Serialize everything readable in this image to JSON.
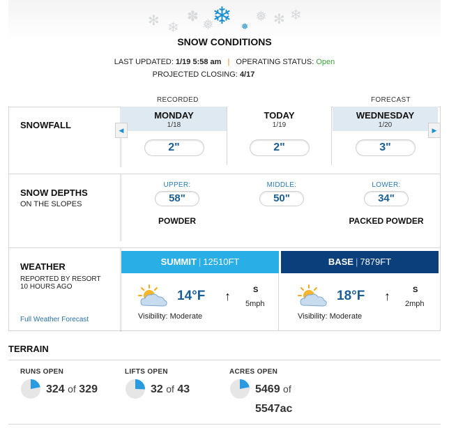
{
  "header": {
    "title": "SNOW CONDITIONS",
    "last_updated_label": "LAST UPDATED:",
    "last_updated_value": "1/19 5:58 am",
    "separator": "|",
    "status_label": "OPERATING STATUS:",
    "status_value": "Open",
    "closing_label": "PROJECTED CLOSING:",
    "closing_value": "4/17",
    "recorded_label": "RECORDED",
    "forecast_label": "FORECAST"
  },
  "snowfall": {
    "label": "SNOWFALL",
    "prev_icon": "chevron-left-icon",
    "next_icon": "chevron-right-icon",
    "days": [
      {
        "name": "MONDAY",
        "date": "1/18",
        "amount": "2\""
      },
      {
        "name": "TODAY",
        "date": "1/19",
        "amount": "2\""
      },
      {
        "name": "WEDNESDAY",
        "date": "1/20",
        "amount": "3\""
      }
    ]
  },
  "depths": {
    "label": "SNOW DEPTHS",
    "sub": "ON THE SLOPES",
    "upper": {
      "label": "UPPER:",
      "value": "58\"",
      "condition": "POWDER"
    },
    "middle": {
      "label": "MIDDLE:",
      "value": "50\""
    },
    "lower": {
      "label": "LOWER:",
      "value": "34\"",
      "condition": "PACKED POWDER"
    }
  },
  "weather": {
    "label": "WEATHER",
    "sub1": "REPORTED BY RESORT",
    "sub2": "10 HOURS AGO",
    "link": "Full Weather Forecast",
    "summit": {
      "name": "SUMMIT",
      "elevation": "12510FT",
      "temp": "14°F",
      "wind_dir": "S",
      "wind_speed": "5mph",
      "visibility": "Visibility: Moderate",
      "icon": "partly-cloudy-icon"
    },
    "base": {
      "name": "BASE",
      "elevation": "7879FT",
      "temp": "18°F",
      "wind_dir": "S",
      "wind_speed": "2mph",
      "visibility": "Visibility: Moderate",
      "icon": "partly-cloudy-icon"
    },
    "pipe": "|"
  },
  "terrain": {
    "title": "TERRAIN",
    "of": "of",
    "runs": {
      "label": "RUNS OPEN",
      "open": "324",
      "total": "329",
      "fraction": 0.985
    },
    "lifts": {
      "label": "LIFTS OPEN",
      "open": "32",
      "total": "43",
      "fraction": 0.744
    },
    "acres": {
      "label": "ACRES OPEN",
      "open": "5469",
      "total": "5547ac",
      "fraction": 0.986
    }
  },
  "colors": {
    "accent_blue": "#1b8fd1",
    "summit_bar": "#29aee6",
    "base_bar": "#0a3f7c",
    "open_green": "#3ba23b",
    "pie_fill": "#2b9be0"
  }
}
